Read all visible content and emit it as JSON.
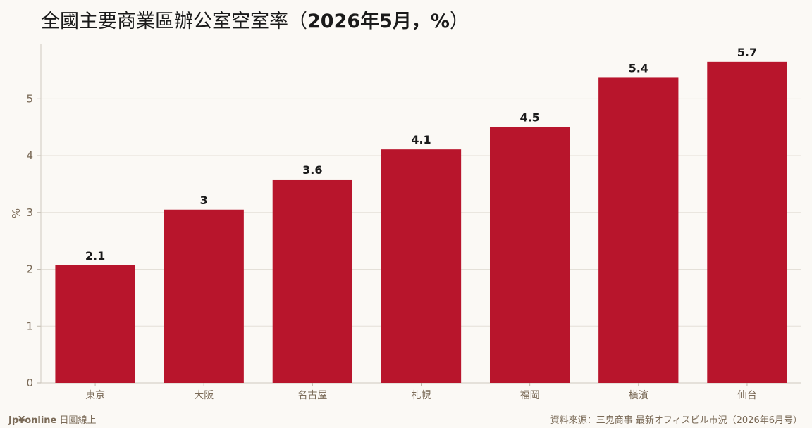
{
  "title": {
    "prefix": "全國主要商業區辦公室空室率",
    "open_paren": "（",
    "bold_part": "2026年5月，%",
    "close_paren": "）"
  },
  "footer": {
    "brand": "Jp¥online",
    "brand_suffix": "日圓線上",
    "source": "資料來源：三鬼商事 最新オフィスビル市況（2026年6月号）"
  },
  "colors": {
    "bar": "#b8152c",
    "axis_text": "#7a6a57",
    "grid": "#e4e0d8",
    "label": "#1a1a1a"
  },
  "chart_data": {
    "type": "bar",
    "categories": [
      "東京",
      "大阪",
      "名古屋",
      "札幌",
      "福岡",
      "橫濱",
      "仙台"
    ],
    "values": [
      2.07,
      3.05,
      3.58,
      4.11,
      4.5,
      5.37,
      5.65
    ],
    "data_labels": [
      "2.1",
      "3",
      "3.6",
      "4.1",
      "4.5",
      "5.4",
      "5.7"
    ],
    "ylabel": "%",
    "yticks": [
      0,
      1,
      2,
      3,
      4,
      5
    ],
    "ylim": [
      0,
      5.97
    ],
    "grid": true,
    "legend": "none"
  }
}
